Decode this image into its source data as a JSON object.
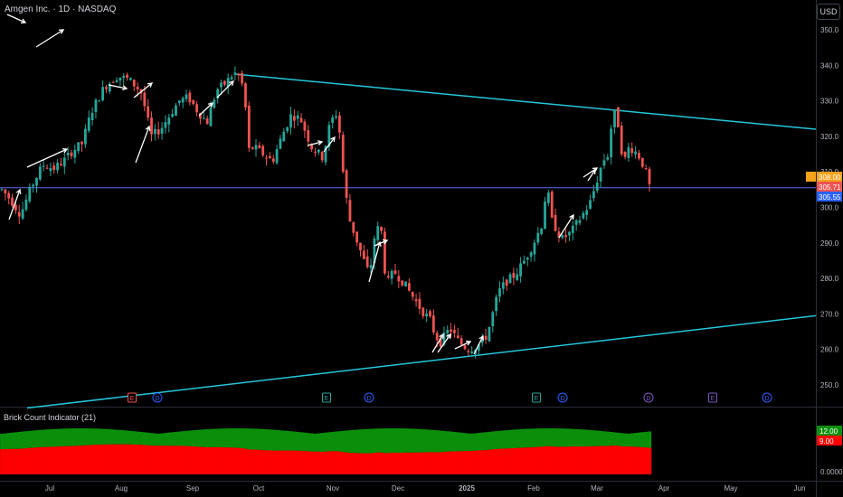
{
  "header": {
    "title": "Amgen Inc. · 1D · NASDAQ",
    "currency_button": "USD"
  },
  "indicator": {
    "label": "Brick Count Indicator (21)"
  },
  "colors": {
    "bg": "#000000",
    "up": "#26a69a",
    "down": "#ef5350",
    "trend": "#26c6da",
    "price_line": "#3f51b5",
    "arrow": "#ffffff",
    "green_bar": "#0b8f0b",
    "red_bar": "#ff0000",
    "axis_text": "#b2b5be"
  },
  "chart_data": [
    {
      "type": "candlestick",
      "title": "Amgen Inc. · 1D · NASDAQ",
      "y_axis": {
        "ticks": [
          250,
          260,
          270,
          280,
          290,
          300,
          310,
          320,
          330,
          340,
          350
        ],
        "range": [
          245,
          355
        ]
      },
      "x_axis": {
        "ticks": [
          "Jul",
          "Aug",
          "Sep",
          "Oct",
          "Nov",
          "Dec",
          "2025",
          "Feb",
          "Mar",
          "Apr",
          "May",
          "Jun"
        ]
      },
      "price_labels": [
        {
          "name": "orange",
          "text": "308.00",
          "value": 308.0,
          "color": "#f7a21b"
        },
        {
          "name": "red",
          "text": "305.71",
          "value": 305.71,
          "color": "#ef5350"
        },
        {
          "name": "blue",
          "text": "305.55",
          "value": 305.55,
          "color": "#2962ff"
        }
      ],
      "horizontal_line": 305.55,
      "trendlines": [
        {
          "from": [
            "Sep 24",
            337.5
          ],
          "to": [
            "Jun 10",
            322
          ]
        },
        {
          "from": [
            "Jun 14",
            243
          ],
          "to": [
            "Jun 10",
            269.5
          ]
        }
      ],
      "events": [
        {
          "type": "E",
          "color": "#ef5350",
          "date": "Aug 6"
        },
        {
          "type": "D",
          "color": "#2962ff",
          "date": "Aug 16"
        },
        {
          "type": "E",
          "color": "#26a69a",
          "date": "Oct 30"
        },
        {
          "type": "D",
          "color": "#2962ff",
          "date": "Nov 12"
        },
        {
          "type": "E",
          "color": "#26a69a",
          "date": "Feb 4"
        },
        {
          "type": "D",
          "color": "#2962ff",
          "date": "Feb 13"
        },
        {
          "type": "D",
          "color": "#7e57c2",
          "date": "Mar 19"
        },
        {
          "type": "E",
          "color": "#7e57c2",
          "date": "Apr 30"
        },
        {
          "type": "D",
          "color": "#2962ff",
          "date": "May 16"
        }
      ],
      "candles_anchor_path": [
        [
          0,
          305
        ],
        [
          5,
          302
        ],
        [
          10,
          298
        ],
        [
          16,
          306
        ],
        [
          22,
          312
        ],
        [
          28,
          311
        ],
        [
          33,
          313
        ],
        [
          38,
          316
        ],
        [
          43,
          318
        ],
        [
          48,
          327
        ],
        [
          55,
          334
        ],
        [
          62,
          337
        ],
        [
          68,
          336
        ],
        [
          72,
          334
        ],
        [
          75,
          332
        ],
        [
          78,
          325
        ],
        [
          80,
          320
        ],
        [
          85,
          322
        ],
        [
          90,
          326
        ],
        [
          95,
          330
        ],
        [
          100,
          331
        ],
        [
          105,
          327
        ],
        [
          110,
          324
        ],
        [
          115,
          333
        ],
        [
          120,
          335
        ],
        [
          123,
          337
        ],
        [
          126,
          338
        ],
        [
          130,
          333
        ],
        [
          132,
          316
        ],
        [
          135,
          317
        ],
        [
          140,
          315
        ],
        [
          145,
          313
        ],
        [
          150,
          320
        ],
        [
          155,
          326
        ],
        [
          160,
          325
        ],
        [
          163,
          321
        ],
        [
          166,
          317
        ],
        [
          170,
          315
        ],
        [
          172,
          314
        ],
        [
          176,
          324
        ],
        [
          180,
          327
        ],
        [
          183,
          309
        ],
        [
          186,
          297
        ],
        [
          190,
          291
        ],
        [
          194,
          285
        ],
        [
          197,
          281
        ],
        [
          200,
          293
        ],
        [
          203,
          295
        ],
        [
          206,
          278
        ],
        [
          210,
          282
        ],
        [
          215,
          279
        ],
        [
          220,
          275
        ],
        [
          225,
          271
        ],
        [
          230,
          268
        ],
        [
          232,
          264
        ],
        [
          235,
          262
        ],
        [
          240,
          266
        ],
        [
          245,
          262
        ],
        [
          250,
          260
        ],
        [
          255,
          261
        ],
        [
          260,
          264
        ],
        [
          263,
          270
        ],
        [
          266,
          276
        ],
        [
          270,
          279
        ],
        [
          275,
          281
        ],
        [
          280,
          285
        ],
        [
          285,
          290
        ],
        [
          290,
          296
        ],
        [
          292,
          308
        ],
        [
          294,
          297
        ],
        [
          297,
          294
        ],
        [
          300,
          291
        ],
        [
          305,
          293
        ],
        [
          310,
          297
        ],
        [
          315,
          301
        ],
        [
          318,
          306
        ],
        [
          322,
          313
        ],
        [
          325,
          315
        ],
        [
          327,
          325
        ],
        [
          329,
          327
        ],
        [
          331,
          321
        ],
        [
          333,
          312
        ],
        [
          336,
          317
        ],
        [
          339,
          316
        ],
        [
          342,
          314
        ],
        [
          345,
          310
        ],
        [
          347,
          306
        ]
      ],
      "candle_count": 187,
      "arrows_count": 20
    },
    {
      "type": "bar",
      "title": "Brick Count Indicator (21)",
      "series": [
        {
          "name": "green",
          "color": "#0b8f0b",
          "level_labels": [
            "12.00"
          ]
        },
        {
          "name": "red",
          "color": "#ff0000",
          "level_labels": [
            "9.00"
          ]
        }
      ],
      "y_axis": {
        "ticks": [
          "0.0000"
        ]
      }
    }
  ]
}
